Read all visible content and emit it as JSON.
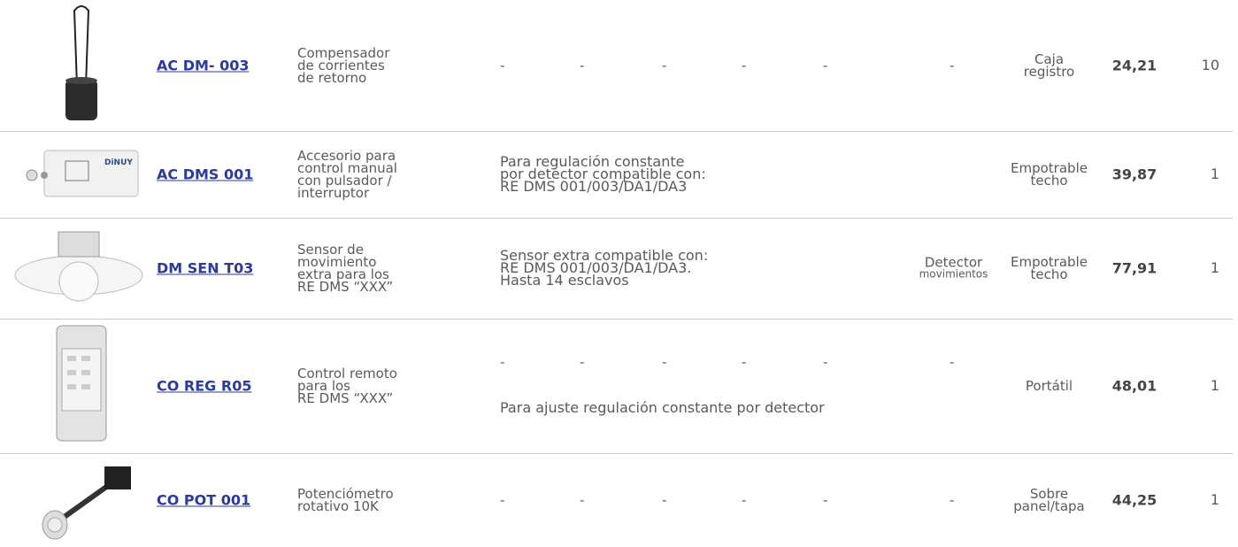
{
  "rows": [
    {
      "code": "AC DM- 003",
      "description": [
        "Compensador",
        "de corrientes",
        "de retorno"
      ],
      "dashes": [
        "-",
        "-",
        "-",
        "-",
        "-",
        "-"
      ],
      "mounting": [
        "Caja",
        "registro"
      ],
      "price": "24,21",
      "quantity": "10"
    },
    {
      "code": "AC DMS 001",
      "description": [
        "Accesorio para",
        "control manual",
        "con pulsador /",
        "interruptor"
      ],
      "note": [
        "Para regulación constante",
        "por detector compatible con:",
        "RE DMS 001/003/DA1/DA3"
      ],
      "mounting": [
        "Empotrable",
        "techo"
      ],
      "price": "39,87",
      "quantity": "1"
    },
    {
      "code": "DM SEN T03",
      "description": [
        "Sensor de",
        "movimiento",
        "extra para los",
        "RE DMS “XXX”"
      ],
      "note": [
        "Sensor extra compatible con:",
        "RE DMS 001/003/DA1/DA3.",
        "Hasta 14 esclavos"
      ],
      "detector": [
        "Detector",
        "movimientos"
      ],
      "mounting": [
        "Empotrable",
        "techo"
      ],
      "price": "77,91",
      "quantity": "1"
    },
    {
      "code": "CO REG R05",
      "description": [
        "Control remoto",
        "para los",
        "RE DMS “XXX”"
      ],
      "dashes": [
        "-",
        "-",
        "-",
        "-",
        "-",
        "-"
      ],
      "note": [
        "Para ajuste regulación constante por detector"
      ],
      "mounting": [
        "Portátil"
      ],
      "price": "48,01",
      "quantity": "1"
    },
    {
      "code": "CO POT 001",
      "description": [
        "Potenciómetro",
        "rotativo 10K"
      ],
      "dashes": [
        "-",
        "-",
        "-",
        "-",
        "-",
        "-"
      ],
      "mounting": [
        "Sobre",
        "panel/tapa"
      ],
      "price": "44,25",
      "quantity": "1"
    }
  ]
}
